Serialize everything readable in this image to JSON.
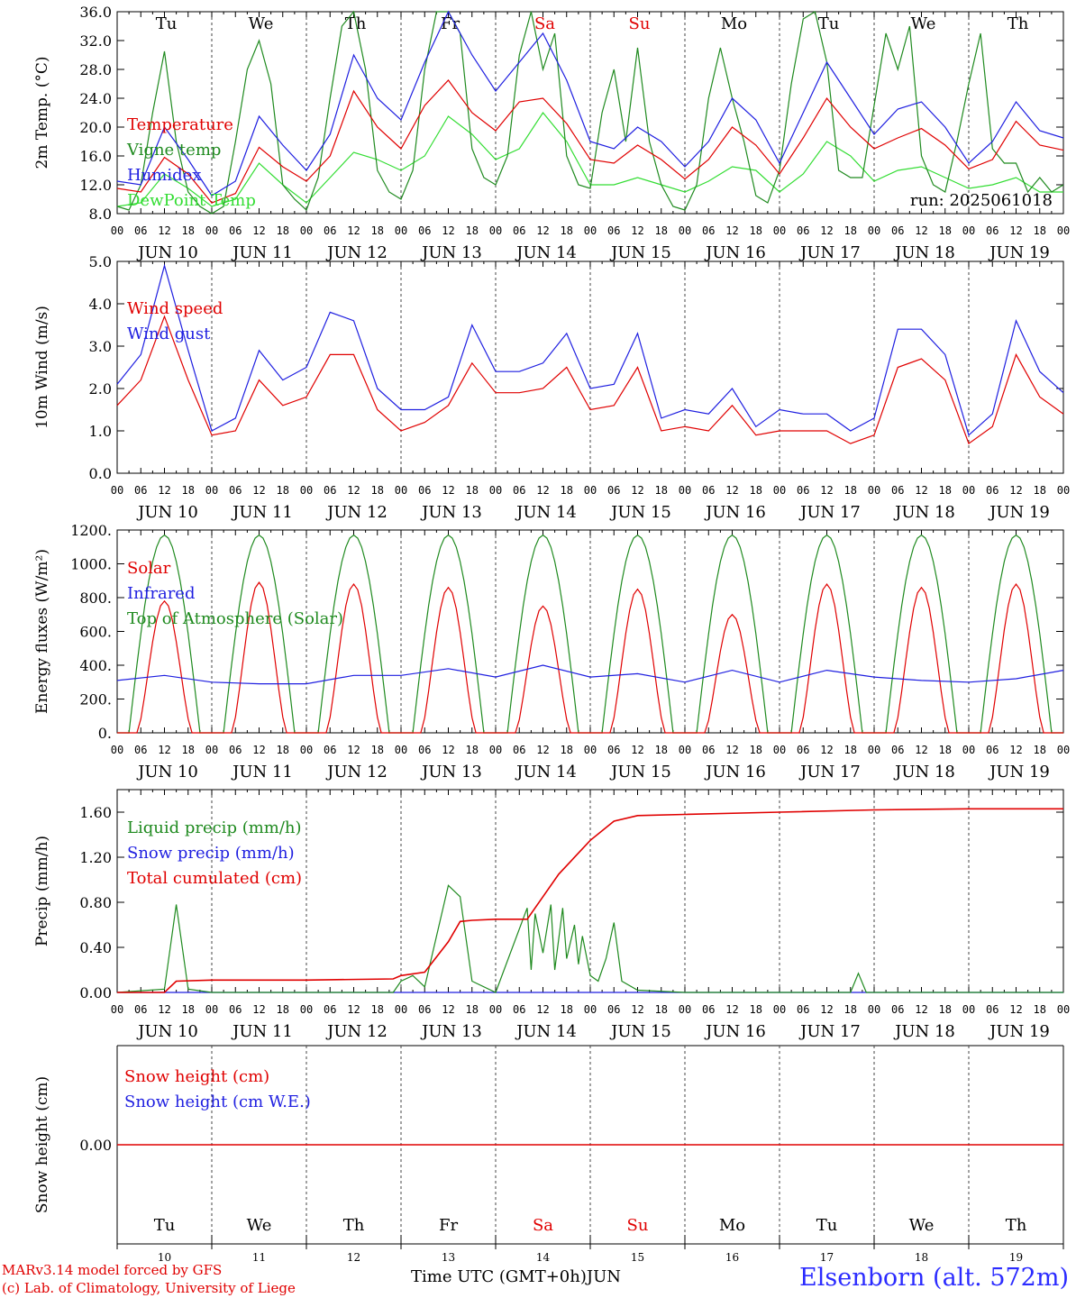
{
  "run_label": "run: 2025061018",
  "colors": {
    "red": "#e00000",
    "green": "#1f8a1f",
    "blue": "#1f1fe0",
    "lightgreen": "#33dd33",
    "darkred": "#e00000"
  },
  "days": [
    {
      "weekday": "Tu",
      "date": "JUN 10",
      "num": "10",
      "weekend": false
    },
    {
      "weekday": "We",
      "date": "JUN 11",
      "num": "11",
      "weekend": false
    },
    {
      "weekday": "Th",
      "date": "JUN 12",
      "num": "12",
      "weekend": false
    },
    {
      "weekday": "Fr",
      "date": "JUN 13",
      "num": "13",
      "weekend": false
    },
    {
      "weekday": "Sa",
      "date": "JUN 14",
      "num": "14",
      "weekend": true
    },
    {
      "weekday": "Su",
      "date": "JUN 15",
      "num": "15",
      "weekend": true
    },
    {
      "weekday": "Mo",
      "date": "JUN 16",
      "num": "16",
      "weekend": false
    },
    {
      "weekday": "Tu",
      "date": "JUN 17",
      "num": "17",
      "weekend": false
    },
    {
      "weekday": "We",
      "date": "JUN 18",
      "num": "18",
      "weekend": false
    },
    {
      "weekday": "Th",
      "date": "JUN 19",
      "num": "19",
      "weekend": false
    }
  ],
  "hour_ticks": [
    "00",
    "06",
    "12",
    "18"
  ],
  "footer": {
    "model": "MARv3.14 model forced by GFS",
    "lab": "(c) Lab. of Climatology, University of Liege",
    "time_label": "Time UTC (GMT+0h)",
    "month": "JUN",
    "station": "Elsenborn (alt. 572m)"
  },
  "chart_data": [
    {
      "type": "line",
      "ylabel": "2m Temp. (°C)",
      "ylim": [
        8,
        36
      ],
      "yticks": [
        "8.0",
        "12.0",
        "16.0",
        "20.0",
        "24.0",
        "28.0",
        "32.0",
        "36.0"
      ],
      "x_unit": "hours since JUN 10 00 UTC",
      "legend": [
        {
          "name": "Temperature",
          "color": "#e00000"
        },
        {
          "name": "Vigne temp",
          "color": "#1f8a1f"
        },
        {
          "name": "Humidex",
          "color": "#1f1fe0"
        },
        {
          "name": "DewPoint Temp",
          "color": "#33dd33"
        }
      ],
      "series": [
        {
          "name": "Temperature",
          "color": "#e00000",
          "x": [
            0,
            6,
            12,
            18,
            24,
            30,
            36,
            42,
            48,
            54,
            60,
            66,
            72,
            78,
            84,
            90,
            96,
            102,
            108,
            114,
            120,
            126,
            132,
            138,
            144,
            150,
            156,
            162,
            168,
            174,
            180,
            186,
            192,
            198,
            204,
            210,
            216,
            222,
            228,
            234,
            240
          ],
          "y": [
            11.5,
            11,
            15.8,
            13.5,
            9.5,
            10.8,
            17.2,
            14.5,
            12.5,
            16,
            25,
            20,
            17,
            23,
            26.5,
            22,
            19.5,
            23.5,
            24,
            20.5,
            15.5,
            15,
            17.5,
            15.5,
            12.8,
            15.5,
            20,
            17.5,
            13.5,
            18.5,
            24,
            20,
            17,
            18.5,
            19.8,
            17.5,
            14.2,
            15.5,
            20.8,
            17.5,
            16.8
          ]
        },
        {
          "name": "Vigne temp",
          "color": "#1f8a1f",
          "x": [
            0,
            3,
            6,
            9,
            12,
            15,
            18,
            21,
            24,
            27,
            30,
            33,
            36,
            39,
            42,
            45,
            48,
            51,
            54,
            57,
            60,
            63,
            66,
            69,
            72,
            75,
            78,
            81,
            84,
            87,
            90,
            93,
            96,
            99,
            102,
            105,
            108,
            111,
            114,
            117,
            120,
            123,
            126,
            129,
            132,
            135,
            138,
            141,
            144,
            147,
            150,
            153,
            156,
            159,
            162,
            165,
            168,
            171,
            174,
            177,
            180,
            183,
            186,
            189,
            192,
            195,
            198,
            201,
            204,
            207,
            210,
            213,
            216,
            219,
            222,
            225,
            228,
            231,
            234,
            237,
            240
          ],
          "y": [
            9,
            8.5,
            12,
            22,
            30.5,
            18,
            11,
            9,
            8,
            9,
            18,
            28,
            32,
            26,
            12,
            10,
            8.5,
            13,
            24,
            34,
            36,
            28,
            14,
            11,
            10,
            14,
            28,
            37,
            37,
            33,
            17,
            13,
            12,
            16,
            30,
            36,
            28,
            33,
            16,
            12,
            11.5,
            22,
            28,
            18,
            31,
            18,
            12,
            9,
            8.5,
            12,
            24,
            31,
            24,
            18,
            10.5,
            9.5,
            14,
            26,
            35,
            37,
            29,
            14,
            13,
            13,
            23,
            33,
            28,
            34,
            16,
            12,
            11,
            18,
            26,
            33,
            17,
            15,
            15,
            11,
            13,
            11,
            12
          ]
        },
        {
          "name": "Humidex",
          "color": "#1f1fe0",
          "x": [
            0,
            6,
            12,
            18,
            24,
            30,
            36,
            42,
            48,
            54,
            60,
            66,
            72,
            78,
            84,
            90,
            96,
            102,
            108,
            114,
            120,
            126,
            132,
            138,
            144,
            150,
            156,
            162,
            168,
            174,
            180,
            186,
            192,
            198,
            204,
            210,
            216,
            222,
            228,
            234,
            240
          ],
          "y": [
            12.5,
            12,
            20,
            15.5,
            10.5,
            12.5,
            21.5,
            17.5,
            14,
            19,
            30,
            24,
            21,
            29,
            36,
            30,
            25,
            29,
            33,
            26.5,
            18,
            17,
            20,
            18,
            14.5,
            18,
            24,
            21,
            15,
            22,
            29,
            24,
            19,
            22.5,
            23.5,
            20,
            15,
            18,
            23.5,
            19.5,
            18.5
          ]
        },
        {
          "name": "DewPoint Temp",
          "color": "#33dd33",
          "x": [
            0,
            6,
            12,
            18,
            24,
            30,
            36,
            42,
            48,
            54,
            60,
            66,
            72,
            78,
            84,
            90,
            96,
            102,
            108,
            114,
            120,
            126,
            132,
            138,
            144,
            150,
            156,
            162,
            168,
            174,
            180,
            186,
            192,
            198,
            204,
            210,
            216,
            222,
            228,
            234,
            240
          ],
          "y": [
            9,
            9.5,
            13.5,
            11.5,
            9,
            10,
            15,
            12,
            9.5,
            13,
            16.5,
            15.5,
            14,
            16,
            21.5,
            19,
            15.5,
            17,
            22,
            18,
            12,
            12,
            13,
            12,
            11,
            12.5,
            14.5,
            14,
            11,
            13.5,
            18,
            16,
            12.5,
            14,
            14.5,
            13,
            11.5,
            12,
            13,
            11,
            11
          ]
        }
      ]
    },
    {
      "type": "line",
      "ylabel": "10m Wind (m/s)",
      "ylim": [
        0,
        5
      ],
      "yticks": [
        "0.0",
        "1.0",
        "2.0",
        "3.0",
        "4.0",
        "5.0"
      ],
      "legend": [
        {
          "name": "Wind speed",
          "color": "#e00000"
        },
        {
          "name": "Wind gust",
          "color": "#1f1fe0"
        }
      ],
      "series": [
        {
          "name": "Wind speed",
          "color": "#e00000",
          "x": [
            0,
            6,
            12,
            18,
            24,
            30,
            36,
            42,
            48,
            54,
            60,
            66,
            72,
            78,
            84,
            90,
            96,
            102,
            108,
            114,
            120,
            126,
            132,
            138,
            144,
            150,
            156,
            162,
            168,
            174,
            180,
            186,
            192,
            198,
            204,
            210,
            216,
            222,
            228,
            234,
            240
          ],
          "y": [
            1.6,
            2.2,
            3.7,
            2.2,
            0.9,
            1.0,
            2.2,
            1.6,
            1.8,
            2.8,
            2.8,
            1.5,
            1.0,
            1.2,
            1.6,
            2.6,
            1.9,
            1.9,
            2.0,
            2.5,
            1.5,
            1.6,
            2.5,
            1.0,
            1.1,
            1.0,
            1.6,
            0.9,
            1.0,
            1.0,
            1.0,
            0.7,
            0.9,
            2.5,
            2.7,
            2.2,
            0.7,
            1.1,
            2.8,
            1.8,
            1.4
          ]
        },
        {
          "name": "Wind gust",
          "color": "#1f1fe0",
          "x": [
            0,
            6,
            12,
            18,
            24,
            30,
            36,
            42,
            48,
            54,
            60,
            66,
            72,
            78,
            84,
            90,
            96,
            102,
            108,
            114,
            120,
            126,
            132,
            138,
            144,
            150,
            156,
            162,
            168,
            174,
            180,
            186,
            192,
            198,
            204,
            210,
            216,
            222,
            228,
            234,
            240
          ],
          "y": [
            2.1,
            2.8,
            4.9,
            2.9,
            1.0,
            1.3,
            2.9,
            2.2,
            2.5,
            3.8,
            3.6,
            2.0,
            1.5,
            1.5,
            1.8,
            3.5,
            2.4,
            2.4,
            2.6,
            3.3,
            2.0,
            2.1,
            3.3,
            1.3,
            1.5,
            1.4,
            2.0,
            1.1,
            1.5,
            1.4,
            1.4,
            1.0,
            1.3,
            3.4,
            3.4,
            2.8,
            0.9,
            1.4,
            3.6,
            2.4,
            1.9
          ]
        }
      ]
    },
    {
      "type": "line",
      "ylabel": "Energy fluxes (W/m²)",
      "ylim": [
        0,
        1200
      ],
      "yticks": [
        "0.",
        "200.",
        "400.",
        "600.",
        "800.",
        "1000.",
        "1200."
      ],
      "legend": [
        {
          "name": "Solar",
          "color": "#e00000"
        },
        {
          "name": "Infrared",
          "color": "#1f1fe0"
        },
        {
          "name": "Top of Atmosphere (Solar)",
          "color": "#1f8a1f"
        }
      ],
      "toa_peak": 1170,
      "solar_peaks": [
        780,
        890,
        880,
        860,
        750,
        850,
        700,
        880,
        860,
        880
      ],
      "series": [
        {
          "name": "Infrared",
          "color": "#1f1fe0",
          "x": [
            0,
            12,
            24,
            36,
            48,
            60,
            72,
            84,
            96,
            108,
            120,
            132,
            144,
            156,
            168,
            180,
            192,
            204,
            216,
            228,
            240
          ],
          "y": [
            310,
            340,
            300,
            290,
            290,
            340,
            340,
            380,
            330,
            400,
            330,
            350,
            300,
            370,
            300,
            370,
            330,
            310,
            300,
            320,
            370
          ]
        }
      ]
    },
    {
      "type": "line",
      "ylabel": "Precip (mm/h)",
      "ylim": [
        0,
        1.8
      ],
      "yticks": [
        "0.00",
        "0.40",
        "0.80",
        "1.20",
        "1.60"
      ],
      "legend": [
        {
          "name": "Liquid precip (mm/h)",
          "color": "#1f8a1f"
        },
        {
          "name": "Snow precip (mm/h)",
          "color": "#1f1fe0"
        },
        {
          "name": "Total cumulated (cm)",
          "color": "#e00000"
        }
      ],
      "series": [
        {
          "name": "Total cumulated (cm)",
          "color": "#e00000",
          "x": [
            0,
            12,
            15,
            24,
            48,
            70,
            72,
            78,
            84,
            87,
            90,
            96,
            104,
            108,
            112,
            120,
            126,
            132,
            144,
            168,
            192,
            216,
            240
          ],
          "y": [
            0,
            0,
            0.1,
            0.11,
            0.11,
            0.12,
            0.15,
            0.18,
            0.45,
            0.63,
            0.64,
            0.65,
            0.65,
            0.85,
            1.05,
            1.35,
            1.52,
            1.57,
            1.58,
            1.6,
            1.62,
            1.63,
            1.63
          ]
        },
        {
          "name": "Liquid precip (mm/h)",
          "color": "#1f8a1f",
          "x": [
            0,
            12,
            15,
            18,
            24,
            70,
            72,
            75,
            78,
            81,
            84,
            87,
            90,
            96,
            104,
            105,
            106,
            108,
            110,
            111,
            113,
            114,
            116,
            117,
            118,
            120,
            122,
            124,
            126,
            128,
            132,
            144,
            186,
            188,
            190,
            240
          ],
          "y": [
            0,
            0.03,
            0.78,
            0.03,
            0,
            0,
            0.1,
            0.15,
            0.05,
            0.5,
            0.95,
            0.85,
            0.1,
            0,
            0.75,
            0.2,
            0.7,
            0.35,
            0.78,
            0.2,
            0.75,
            0.3,
            0.6,
            0.25,
            0.5,
            0.15,
            0.1,
            0.3,
            0.62,
            0.1,
            0.02,
            0,
            0,
            0.17,
            0,
            0
          ]
        }
      ]
    },
    {
      "type": "line",
      "ylabel": "Snow height (cm)",
      "ytick": "0.00",
      "legend": [
        {
          "name": "Snow height (cm)",
          "color": "#e00000"
        },
        {
          "name": "Snow height (cm W.E.)",
          "color": "#1f1fe0"
        }
      ],
      "series": [
        {
          "name": "Snow height (cm)",
          "color": "#e00000",
          "x": [
            0,
            240
          ],
          "y": [
            0,
            0
          ]
        }
      ]
    }
  ]
}
